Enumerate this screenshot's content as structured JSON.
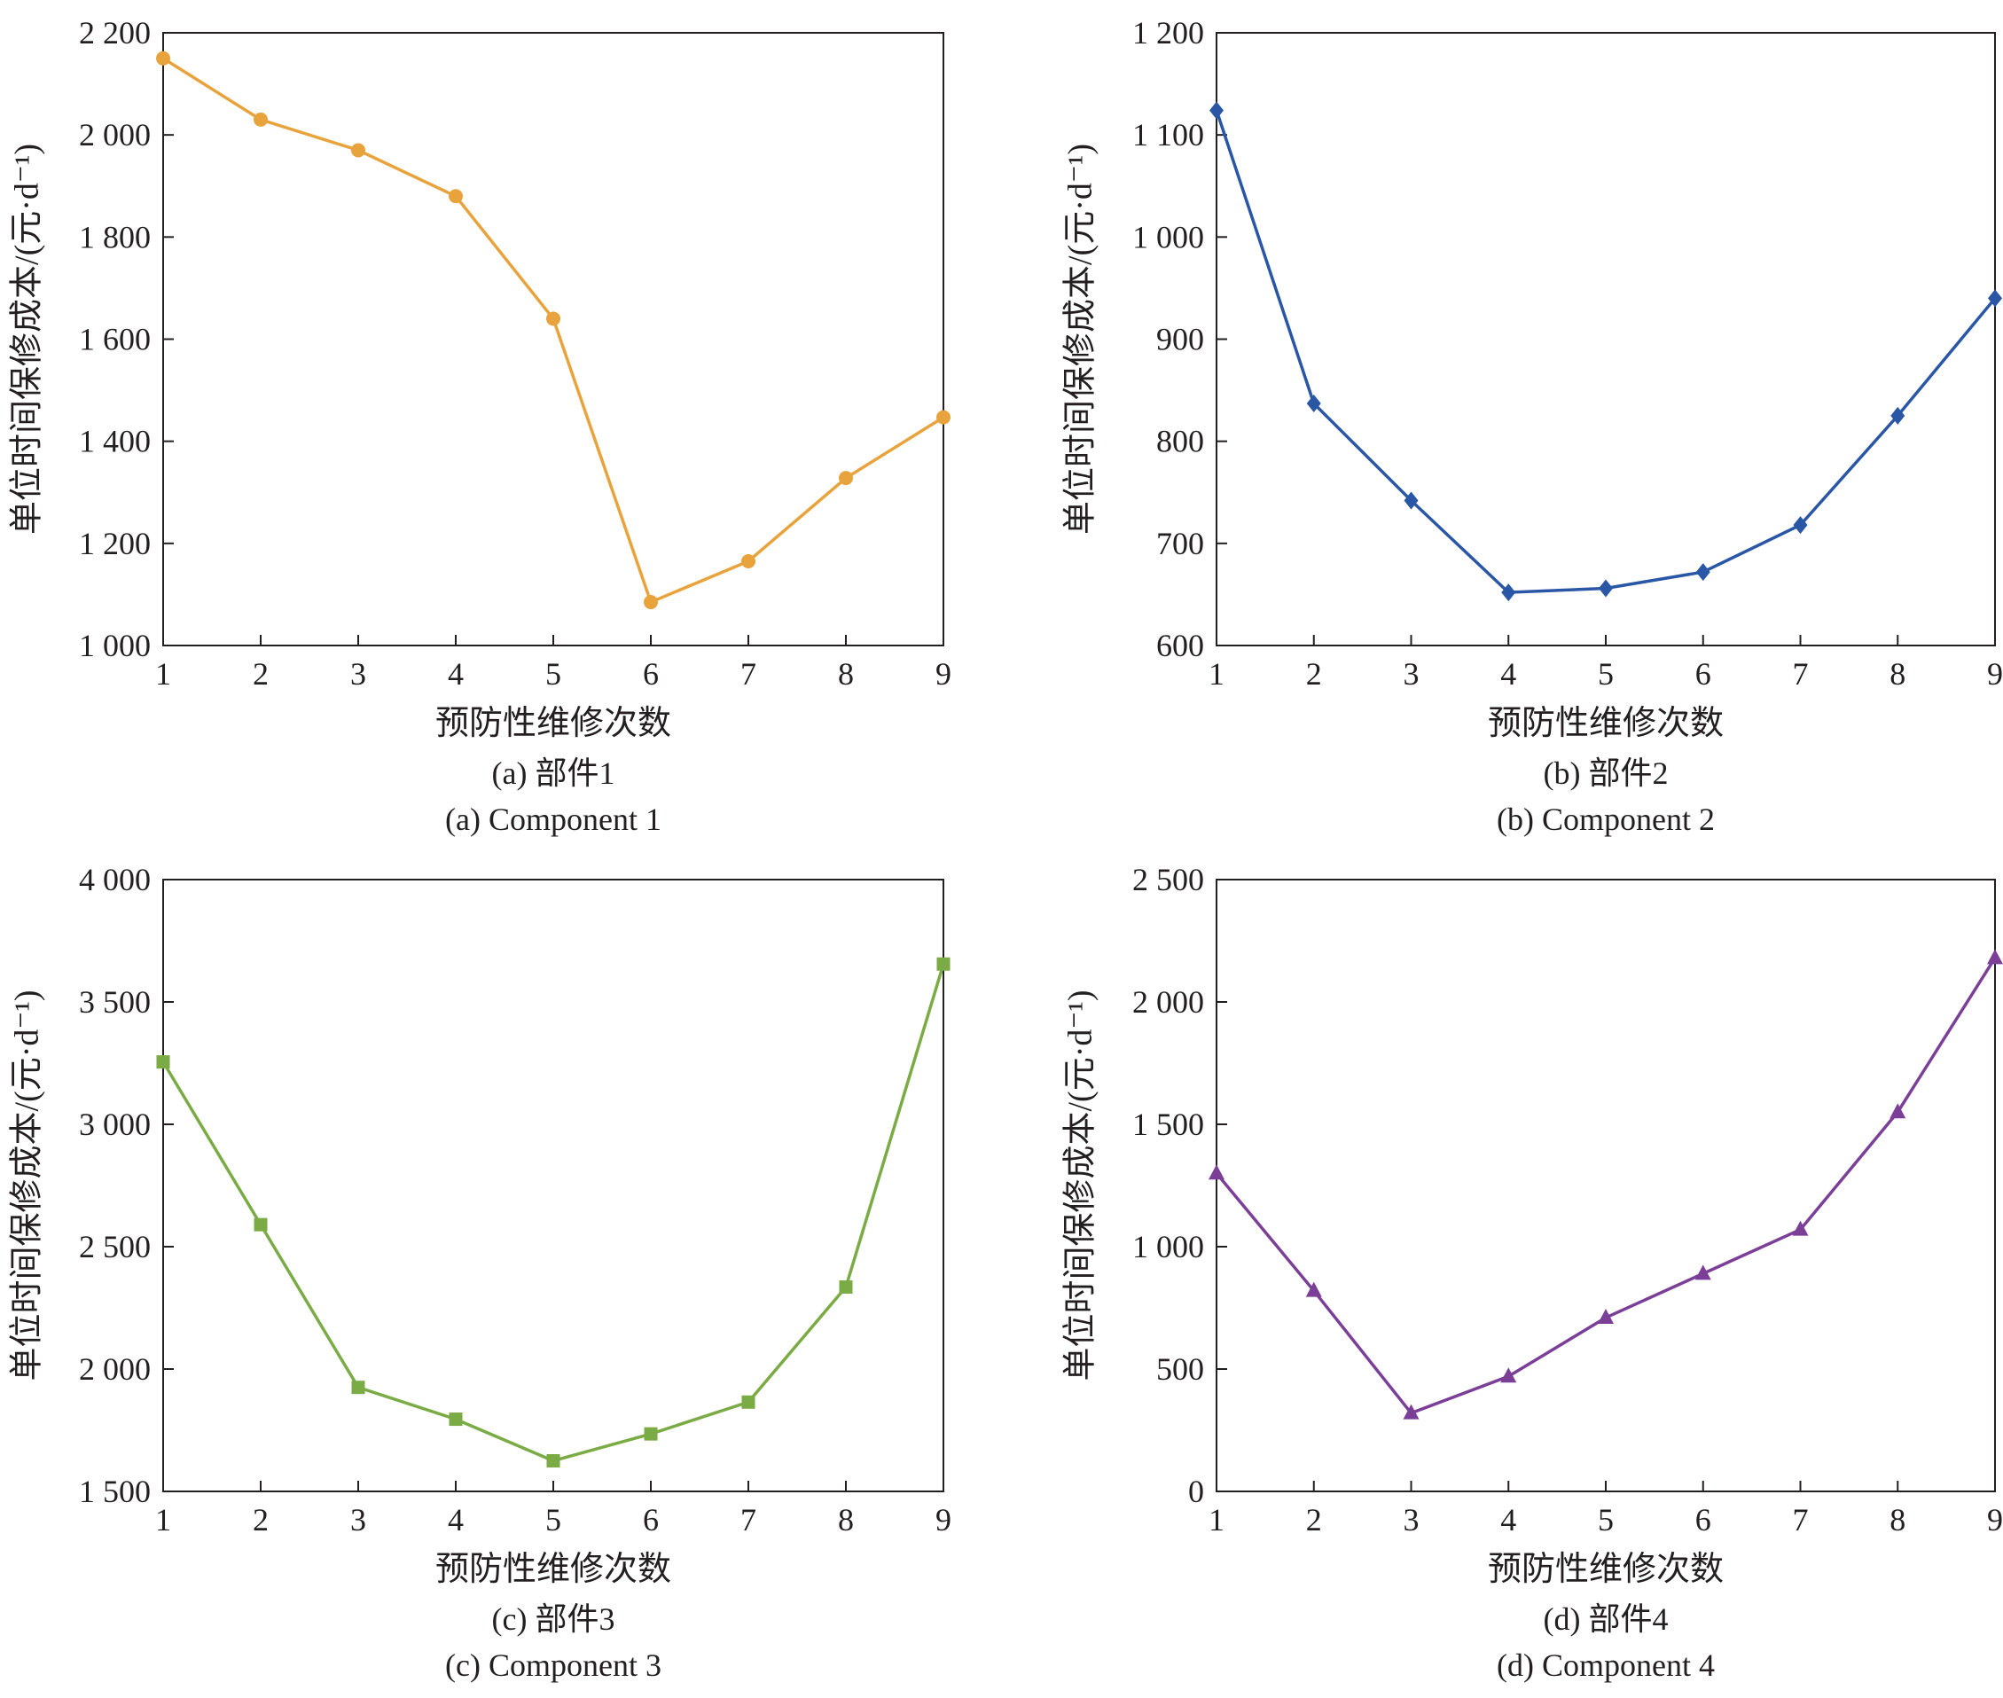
{
  "chart_data": [
    {
      "type": "line",
      "title": "",
      "xlabel": "预防性维修次数",
      "ylabel": "单位时间保修成本/(元·d⁻¹)",
      "caption_cn": "(a) 部件1",
      "caption_en": "(a) Component 1",
      "x": [
        1,
        2,
        3,
        4,
        5,
        6,
        7,
        8,
        9
      ],
      "xlim": [
        1,
        9
      ],
      "ylim": [
        1000,
        2200
      ],
      "yticks": [
        1000,
        1200,
        1400,
        1600,
        1800,
        2000,
        2200
      ],
      "ytick_labels": [
        "1 000",
        "1 200",
        "1 400",
        "1 600",
        "1 800",
        "2 000",
        "2 200"
      ],
      "xtick_labels": [
        "1",
        "2",
        "3",
        "4",
        "5",
        "6",
        "7",
        "8",
        "9"
      ],
      "grid": false,
      "series": [
        {
          "values": [
            2150,
            2030,
            1970,
            1880,
            1640,
            1085,
            1165,
            1328,
            1447
          ],
          "color": "#e8a33d",
          "marker": "circle"
        }
      ]
    },
    {
      "type": "line",
      "title": "",
      "xlabel": "预防性维修次数",
      "ylabel": "单位时间保修成本/(元·d⁻¹)",
      "caption_cn": "(b) 部件2",
      "caption_en": "(b) Component 2",
      "x": [
        1,
        2,
        3,
        4,
        5,
        6,
        7,
        8,
        9
      ],
      "xlim": [
        1,
        9
      ],
      "ylim": [
        600,
        1200
      ],
      "yticks": [
        600,
        700,
        800,
        900,
        1000,
        1100,
        1200
      ],
      "ytick_labels": [
        "600",
        "700",
        "800",
        "900",
        "1 000",
        "1 100",
        "1 200"
      ],
      "xtick_labels": [
        "1",
        "2",
        "3",
        "4",
        "5",
        "6",
        "7",
        "8",
        "9"
      ],
      "grid": false,
      "series": [
        {
          "values": [
            1124,
            837,
            742,
            652,
            656,
            672,
            718,
            825,
            940
          ],
          "color": "#2a56a6",
          "marker": "diamond"
        }
      ]
    },
    {
      "type": "line",
      "title": "",
      "xlabel": "预防性维修次数",
      "ylabel": "单位时间保修成本/(元·d⁻¹)",
      "caption_cn": "(c) 部件3",
      "caption_en": "(c) Component 3",
      "x": [
        1,
        2,
        3,
        4,
        5,
        6,
        7,
        8,
        9
      ],
      "xlim": [
        1,
        9
      ],
      "ylim": [
        1500,
        4000
      ],
      "yticks": [
        1500,
        2000,
        2500,
        3000,
        3500,
        4000
      ],
      "ytick_labels": [
        "1 500",
        "2 000",
        "2 500",
        "3 000",
        "3 500",
        "4 000"
      ],
      "xtick_labels": [
        "1",
        "2",
        "3",
        "4",
        "5",
        "6",
        "7",
        "8",
        "9"
      ],
      "grid": false,
      "series": [
        {
          "values": [
            3255,
            2590,
            1925,
            1795,
            1625,
            1735,
            1865,
            2335,
            3655
          ],
          "color": "#7aab45",
          "marker": "square"
        }
      ]
    },
    {
      "type": "line",
      "title": "",
      "xlabel": "预防性维修次数",
      "ylabel": "单位时间保修成本/(元·d⁻¹)",
      "caption_cn": "(d) 部件4",
      "caption_en": "(d) Component 4",
      "x": [
        1,
        2,
        3,
        4,
        5,
        6,
        7,
        8,
        9
      ],
      "xlim": [
        1,
        9
      ],
      "ylim": [
        0,
        2500
      ],
      "yticks": [
        0,
        500,
        1000,
        1500,
        2000,
        2500
      ],
      "ytick_labels": [
        "0",
        "500",
        "1 000",
        "1 500",
        "2 000",
        "2 500"
      ],
      "xtick_labels": [
        "1",
        "2",
        "3",
        "4",
        "5",
        "6",
        "7",
        "8",
        "9"
      ],
      "grid": false,
      "series": [
        {
          "values": [
            1300,
            820,
            320,
            470,
            710,
            890,
            1070,
            1550,
            2180
          ],
          "color": "#7b3f98",
          "marker": "triangle"
        }
      ]
    }
  ]
}
